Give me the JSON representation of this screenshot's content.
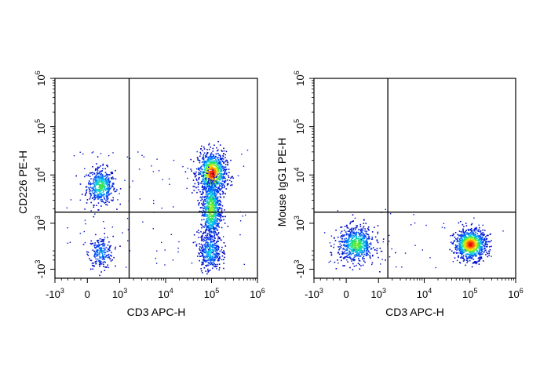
{
  "chart_data": [
    {
      "type": "scatter",
      "subtype": "flow-cytometry-density-dot-plot",
      "title": "",
      "xlabel": "CD3 APC-H",
      "ylabel": "CD226 PE-H",
      "x_scale": "biexponential",
      "y_scale": "biexponential",
      "xlim": [
        -1000,
        1000000
      ],
      "ylim": [
        -1000,
        1000000
      ],
      "x_ticks": [
        {
          "base": "-10",
          "exp": "3",
          "value": -1000
        },
        {
          "base": "0",
          "exp": "",
          "value": 0
        },
        {
          "base": "10",
          "exp": "3",
          "value": 1000
        },
        {
          "base": "10",
          "exp": "4",
          "value": 10000
        },
        {
          "base": "10",
          "exp": "5",
          "value": 100000
        },
        {
          "base": "10",
          "exp": "6",
          "value": 1000000
        }
      ],
      "y_ticks": [
        {
          "base": "-10",
          "exp": "3",
          "value": -1000
        },
        {
          "base": "10",
          "exp": "3",
          "value": 1000
        },
        {
          "base": "10",
          "exp": "4",
          "value": 10000
        },
        {
          "base": "10",
          "exp": "5",
          "value": 100000
        },
        {
          "base": "10",
          "exp": "6",
          "value": 1000000
        }
      ],
      "gate": {
        "x": 1600,
        "y": 1700
      },
      "populations": [
        {
          "name": "CD3- CD226+",
          "center": [
            400,
            6000
          ],
          "peak_density": 0.55
        },
        {
          "name": "CD3- CD226-",
          "center": [
            400,
            -250
          ],
          "peak_density": 0.3
        },
        {
          "name": "CD3+ CD226 high",
          "center": [
            100000,
            11000
          ],
          "peak_density": 1.0
        },
        {
          "name": "CD3+ CD226 low",
          "center": [
            95000,
            2000
          ],
          "peak_density": 0.65
        },
        {
          "name": "CD3+ CD226-",
          "center": [
            90000,
            -200
          ],
          "peak_density": 0.4
        }
      ],
      "grid": false,
      "legend": "none"
    },
    {
      "type": "scatter",
      "subtype": "flow-cytometry-density-dot-plot",
      "title": "",
      "xlabel": "CD3 APC-H",
      "ylabel": "Mouse IgG1 PE-H",
      "x_scale": "biexponential",
      "y_scale": "biexponential",
      "xlim": [
        -1000,
        1000000
      ],
      "ylim": [
        -1000,
        1000000
      ],
      "x_ticks": [
        {
          "base": "-10",
          "exp": "3",
          "value": -1000
        },
        {
          "base": "0",
          "exp": "",
          "value": 0
        },
        {
          "base": "10",
          "exp": "3",
          "value": 1000
        },
        {
          "base": "10",
          "exp": "4",
          "value": 10000
        },
        {
          "base": "10",
          "exp": "5",
          "value": 100000
        },
        {
          "base": "10",
          "exp": "6",
          "value": 1000000
        }
      ],
      "y_ticks": [
        {
          "base": "-10",
          "exp": "3",
          "value": -1000
        },
        {
          "base": "10",
          "exp": "3",
          "value": 1000
        },
        {
          "base": "10",
          "exp": "4",
          "value": 10000
        },
        {
          "base": "10",
          "exp": "5",
          "value": 100000
        },
        {
          "base": "10",
          "exp": "6",
          "value": 1000000
        }
      ],
      "gate": {
        "x": 1600,
        "y": 1700
      },
      "populations": [
        {
          "name": "CD3- IgG1-",
          "center": [
            300,
            100
          ],
          "peak_density": 0.6
        },
        {
          "name": "CD3+ IgG1-",
          "center": [
            100000,
            100
          ],
          "peak_density": 1.0
        }
      ],
      "grid": false,
      "legend": "none"
    }
  ]
}
